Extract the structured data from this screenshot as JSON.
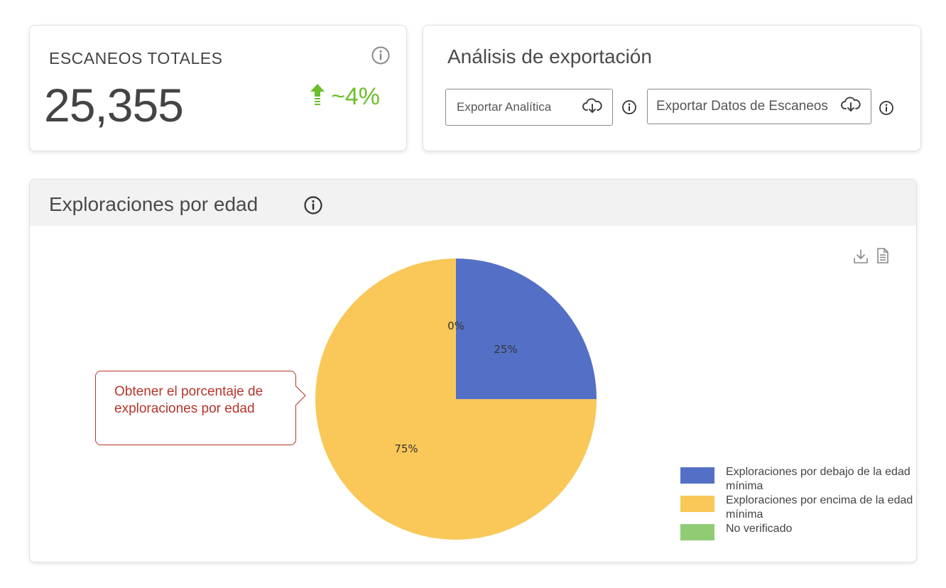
{
  "totals": {
    "title": "ESCANEOS TOTALES",
    "value": "25,355",
    "trend": "~4%",
    "trend_color": "#6cbf2c"
  },
  "export": {
    "title": "Análisis de exportación",
    "analytics_label": "Exportar Analítica",
    "scans_label": "Exportar Datos de Escaneos"
  },
  "chart_card": {
    "title": "Exploraciones por edad",
    "callout": "Obtener el porcentaje de exploraciones por edad"
  },
  "chart_data": {
    "type": "pie",
    "series": [
      {
        "name": "Exploraciones por debajo de la edad mínima",
        "value": 25,
        "label": "25%",
        "color": "#5470c6"
      },
      {
        "name": "Exploraciones por encima de la edad mínima",
        "value": 75,
        "label": "75%",
        "color": "#f9c858"
      },
      {
        "name": "No verificado",
        "value": 0,
        "label": "0%",
        "color": "#91cc75"
      }
    ],
    "legend_position": "bottom-right"
  },
  "icons": {
    "info": "info-icon",
    "cloud_download": "cloud-download-icon",
    "arrow_up": "arrow-up-icon",
    "download": "download-icon",
    "document": "document-icon"
  }
}
